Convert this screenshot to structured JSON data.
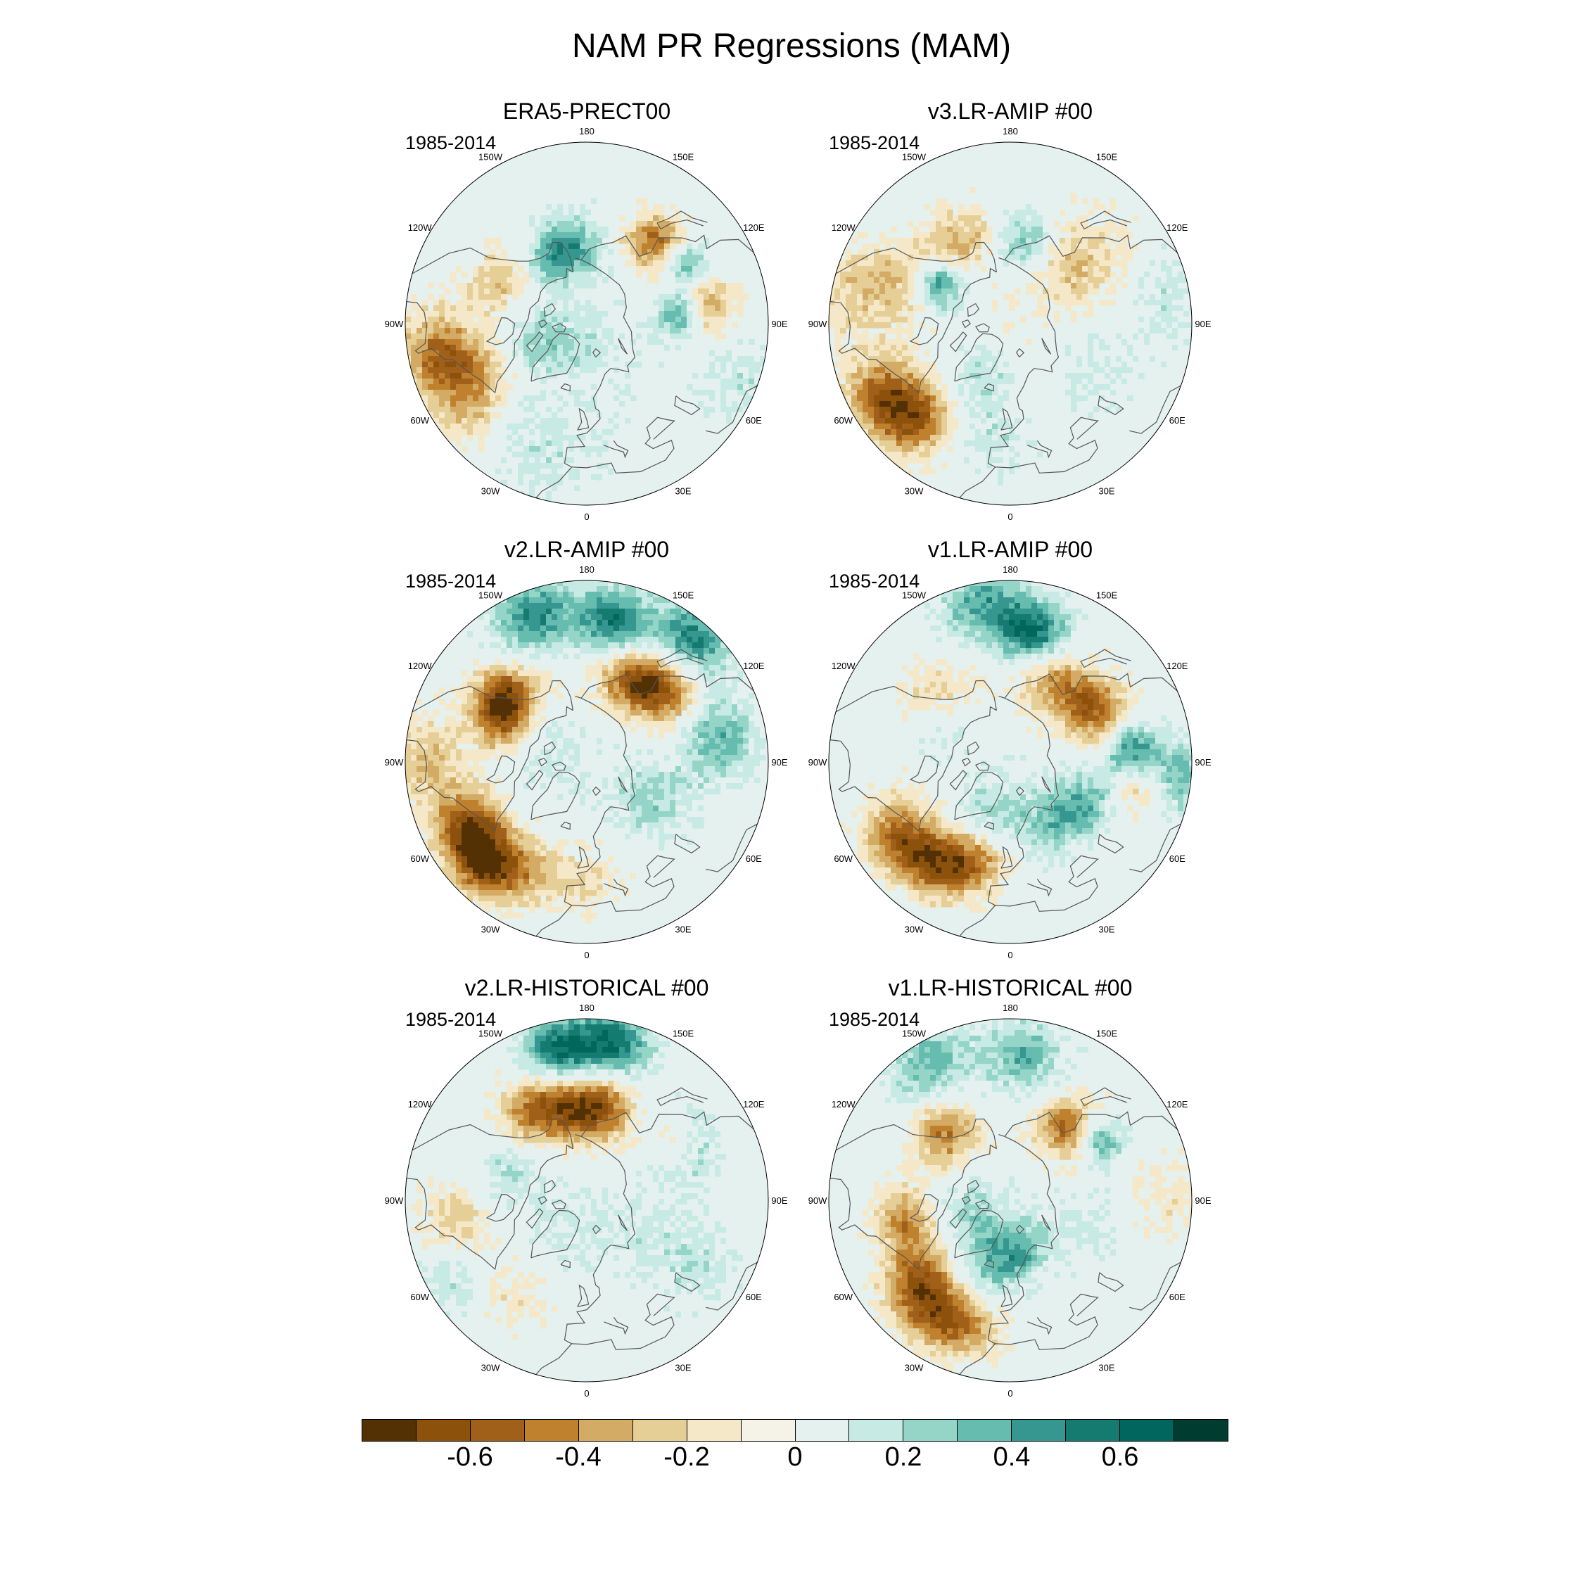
{
  "figure": {
    "title": "NAM PR Regressions (MAM)"
  },
  "panels": [
    {
      "title": "ERA5-PRECT00",
      "years": "1985-2014",
      "seed": 1,
      "pattern": "era5"
    },
    {
      "title": "v3.LR-AMIP  #00",
      "years": "1985-2014",
      "seed": 2,
      "pattern": "v3amip"
    },
    {
      "title": "v2.LR-AMIP  #00",
      "years": "1985-2014",
      "seed": 3,
      "pattern": "v2amip"
    },
    {
      "title": "v1.LR-AMIP  #00",
      "years": "1985-2014",
      "seed": 4,
      "pattern": "v1amip"
    },
    {
      "title": "v2.LR-HISTORICAL  #00",
      "years": "1985-2014",
      "seed": 5,
      "pattern": "v2hist"
    },
    {
      "title": "v1.LR-HISTORICAL  #00",
      "years": "1985-2014",
      "seed": 6,
      "pattern": "v1hist"
    }
  ],
  "longitude_labels": [
    "0",
    "30E",
    "60E",
    "90E",
    "120E",
    "150E",
    "180",
    "150W",
    "120W",
    "90W",
    "60W",
    "30W"
  ],
  "colorbar": {
    "colors": [
      "#543005",
      "#8c510a",
      "#a0601a",
      "#bf812d",
      "#d3ab64",
      "#e6cf96",
      "#f5e8c8",
      "#f5f2e8",
      "#e4f1ef",
      "#c7eae5",
      "#95d5c8",
      "#66bdaf",
      "#35978f",
      "#157a6f",
      "#01665e",
      "#003c30"
    ],
    "levels": [
      -0.7,
      -0.6,
      -0.5,
      -0.4,
      -0.3,
      -0.2,
      -0.1,
      0,
      0.1,
      0.2,
      0.3,
      0.4,
      0.5,
      0.6,
      0.7
    ],
    "tick_labels": [
      "-0.6",
      "-0.4",
      "-0.2",
      "0",
      "0.2",
      "0.4",
      "0.6"
    ],
    "tick_values": [
      -0.6,
      -0.4,
      -0.2,
      0,
      0.2,
      0.4,
      0.6
    ]
  },
  "colors": {
    "coastline": "#555555",
    "map_border": "#000000"
  }
}
